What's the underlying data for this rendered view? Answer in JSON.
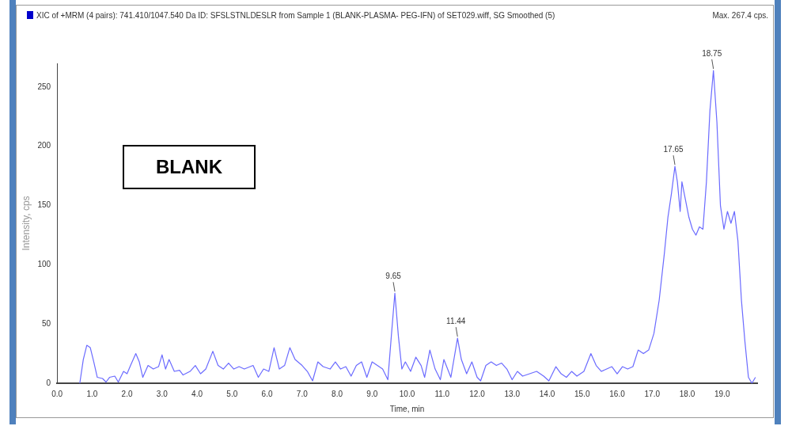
{
  "chart_data": {
    "type": "line",
    "title": "XIC of +MRM (4 pairs): 741.410/1047.540 Da ID: SFSLSTNLDESLR from Sample 1 (BLANK-PLASMA- PEG-IFN) of SET029.wiff, SG Smoothed (5)",
    "xlabel": "Time, min",
    "ylabel": "Intensity, cps",
    "annotations": [
      "Max. 267.4 cps.",
      "BLANK",
      {
        "text": "9.65",
        "x": 9.65,
        "y": 76
      },
      {
        "text": "11.44",
        "x": 11.44,
        "y": 38
      },
      {
        "text": "17.65",
        "x": 17.65,
        "y": 183
      },
      {
        "text": "18.75",
        "x": 18.75,
        "y": 264
      }
    ],
    "series": [
      {
        "color": "#6b6bff",
        "x": [
          0.65,
          0.75,
          0.85,
          0.95,
          1.05,
          1.15,
          1.3,
          1.4,
          1.5,
          1.65,
          1.75,
          1.9,
          2.0,
          2.1,
          2.25,
          2.35,
          2.45,
          2.6,
          2.75,
          2.9,
          3.0,
          3.1,
          3.2,
          3.35,
          3.5,
          3.6,
          3.8,
          3.95,
          4.1,
          4.25,
          4.45,
          4.6,
          4.75,
          4.9,
          5.05,
          5.2,
          5.35,
          5.6,
          5.75,
          5.9,
          6.05,
          6.2,
          6.35,
          6.5,
          6.65,
          6.8,
          7.0,
          7.15,
          7.3,
          7.45,
          7.6,
          7.8,
          7.95,
          8.1,
          8.25,
          8.4,
          8.55,
          8.7,
          8.85,
          9.0,
          9.15,
          9.3,
          9.45,
          9.55,
          9.65,
          9.75,
          9.85,
          9.95,
          10.1,
          10.25,
          10.4,
          10.5,
          10.65,
          10.8,
          10.95,
          11.05,
          11.25,
          11.44,
          11.55,
          11.7,
          11.85,
          12.0,
          12.1,
          12.25,
          12.4,
          12.55,
          12.7,
          12.85,
          13.0,
          13.15,
          13.3,
          13.5,
          13.7,
          13.9,
          14.05,
          14.25,
          14.4,
          14.55,
          14.7,
          14.85,
          15.05,
          15.25,
          15.4,
          15.55,
          15.7,
          15.85,
          16.0,
          16.15,
          16.3,
          16.45,
          16.6,
          16.75,
          16.9,
          17.05,
          17.2,
          17.35,
          17.45,
          17.55,
          17.65,
          17.72,
          17.8,
          17.85,
          17.95,
          18.05,
          18.15,
          18.25,
          18.35,
          18.45,
          18.55,
          18.65,
          18.75,
          18.85,
          18.95,
          19.05,
          19.15,
          19.25,
          19.35,
          19.45,
          19.55,
          19.65,
          19.75,
          19.85,
          19.95
        ],
        "values": [
          0,
          20,
          32,
          30,
          18,
          5,
          4,
          1,
          5,
          6,
          1,
          10,
          8,
          15,
          25,
          18,
          5,
          15,
          12,
          14,
          24,
          12,
          20,
          10,
          11,
          7,
          10,
          15,
          8,
          12,
          27,
          15,
          12,
          17,
          12,
          14,
          12,
          15,
          5,
          12,
          10,
          30,
          12,
          15,
          30,
          20,
          15,
          10,
          2,
          18,
          14,
          12,
          18,
          12,
          14,
          6,
          15,
          18,
          5,
          18,
          15,
          12,
          3,
          40,
          76,
          40,
          12,
          18,
          10,
          22,
          15,
          5,
          28,
          12,
          3,
          20,
          5,
          38,
          20,
          8,
          18,
          5,
          2,
          15,
          18,
          15,
          17,
          12,
          3,
          10,
          6,
          8,
          10,
          6,
          2,
          14,
          8,
          5,
          10,
          6,
          10,
          25,
          15,
          10,
          12,
          14,
          8,
          14,
          12,
          14,
          28,
          25,
          28,
          42,
          70,
          110,
          140,
          160,
          183,
          170,
          145,
          170,
          155,
          140,
          130,
          125,
          132,
          130,
          170,
          230,
          264,
          220,
          150,
          130,
          145,
          135,
          145,
          120,
          70,
          35,
          5,
          0,
          5
        ]
      }
    ],
    "xlim": [
      0,
      20
    ],
    "xticks": [
      {
        "value": 0,
        "label": "0.0"
      },
      {
        "value": 1,
        "label": "1.0"
      },
      {
        "value": 2,
        "label": "2.0"
      },
      {
        "value": 3,
        "label": "3.0"
      },
      {
        "value": 4,
        "label": "4.0"
      },
      {
        "value": 5,
        "label": "5.0"
      },
      {
        "value": 6,
        "label": "6.0"
      },
      {
        "value": 7,
        "label": "7.0"
      },
      {
        "value": 8,
        "label": "8.0"
      },
      {
        "value": 9,
        "label": "9.0"
      },
      {
        "value": 10,
        "label": "10.0"
      },
      {
        "value": 11,
        "label": "11.0"
      },
      {
        "value": 12,
        "label": "12.0"
      },
      {
        "value": 13,
        "label": "13.0"
      },
      {
        "value": 14,
        "label": "14.0"
      },
      {
        "value": 15,
        "label": "15.0"
      },
      {
        "value": 16,
        "label": "16.0"
      },
      {
        "value": 17,
        "label": "17.0"
      },
      {
        "value": 18,
        "label": "18.0"
      },
      {
        "value": 19,
        "label": "19.0"
      }
    ],
    "ylim": [
      0,
      270
    ],
    "yticks": [
      0,
      50,
      100,
      150,
      200,
      250
    ],
    "grid": false,
    "legend": false,
    "marker": "none",
    "line_style": "solid"
  }
}
